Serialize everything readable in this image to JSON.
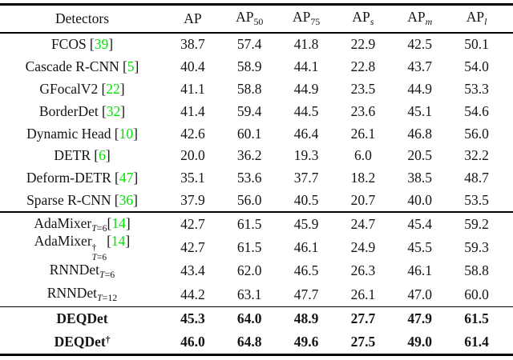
{
  "page": {
    "background": "#ffffff"
  },
  "table": {
    "colors": {
      "citation_green": "#00e400",
      "text": "#141414",
      "rule": "#000000"
    },
    "brackets": {
      "open": "[",
      "close": "]"
    },
    "header": {
      "detectors": "Detectors",
      "columns": [
        {
          "base": "AP",
          "sub": "",
          "italic": false
        },
        {
          "base": "AP",
          "sub": "50",
          "italic": false
        },
        {
          "base": "AP",
          "sub": "75",
          "italic": false
        },
        {
          "base": "AP",
          "sub": "s",
          "italic": true
        },
        {
          "base": "AP",
          "sub": "m",
          "italic": true
        },
        {
          "base": "AP",
          "sub": "l",
          "italic": true
        }
      ]
    },
    "sections": [
      {
        "bold": false,
        "rows": [
          {
            "base": "FCOS",
            "cite": "39",
            "space_before_cite": true,
            "values": [
              "38.7",
              "57.4",
              "41.8",
              "22.9",
              "42.5",
              "50.1"
            ]
          },
          {
            "base": "Cascade R-CNN",
            "cite": "5",
            "space_before_cite": true,
            "values": [
              "40.4",
              "58.9",
              "44.1",
              "22.8",
              "43.7",
              "54.0"
            ]
          },
          {
            "base": "GFocalV2",
            "cite": "22",
            "space_before_cite": true,
            "values": [
              "41.1",
              "58.8",
              "44.9",
              "23.5",
              "44.9",
              "53.3"
            ]
          },
          {
            "base": "BorderDet",
            "cite": "32",
            "space_before_cite": true,
            "values": [
              "41.4",
              "59.4",
              "44.5",
              "23.6",
              "45.1",
              "54.6"
            ]
          },
          {
            "base": "Dynamic Head",
            "cite": "10",
            "space_before_cite": true,
            "values": [
              "42.6",
              "60.1",
              "46.4",
              "26.1",
              "46.8",
              "56.0"
            ]
          },
          {
            "base": "DETR",
            "cite": "6",
            "space_before_cite": true,
            "values": [
              "20.0",
              "36.2",
              "19.3",
              "6.0",
              "20.5",
              "32.2"
            ]
          },
          {
            "base": "Deform-DETR",
            "cite": "47",
            "space_before_cite": true,
            "values": [
              "35.1",
              "53.6",
              "37.7",
              "18.2",
              "38.5",
              "48.7"
            ]
          },
          {
            "base": "Sparse R-CNN",
            "cite": "36",
            "space_before_cite": true,
            "values": [
              "37.9",
              "56.0",
              "40.5",
              "20.7",
              "40.0",
              "53.5"
            ]
          }
        ]
      },
      {
        "bold": false,
        "rows": [
          {
            "base": "AdaMixer",
            "sub_it": "T",
            "sub_rest": "=6",
            "cite": "14",
            "space_before_cite": false,
            "values": [
              "42.7",
              "61.5",
              "45.9",
              "24.7",
              "45.4",
              "59.2"
            ]
          },
          {
            "base": "AdaMixer",
            "sup": "†",
            "sub_it": "T",
            "sub_rest": "=6",
            "cite": "14",
            "space_before_cite": false,
            "values": [
              "42.7",
              "61.5",
              "46.1",
              "24.9",
              "45.5",
              "59.3"
            ]
          },
          {
            "base": "RNNDet",
            "sub_it": "T",
            "sub_rest": "=6",
            "values": [
              "43.4",
              "62.0",
              "46.5",
              "26.3",
              "46.1",
              "58.8"
            ]
          },
          {
            "base": "RNNDet",
            "sub_it": "T",
            "sub_rest": "=12",
            "values": [
              "44.2",
              "63.1",
              "47.7",
              "26.1",
              "47.0",
              "60.0"
            ]
          }
        ]
      },
      {
        "bold": true,
        "rows": [
          {
            "base": "DEQDet",
            "values": [
              "45.3",
              "64.0",
              "48.9",
              "27.7",
              "47.9",
              "61.5"
            ]
          },
          {
            "base": "DEQDet",
            "sup": "†",
            "values": [
              "46.0",
              "64.8",
              "49.6",
              "27.5",
              "49.0",
              "61.4"
            ]
          }
        ]
      }
    ]
  }
}
